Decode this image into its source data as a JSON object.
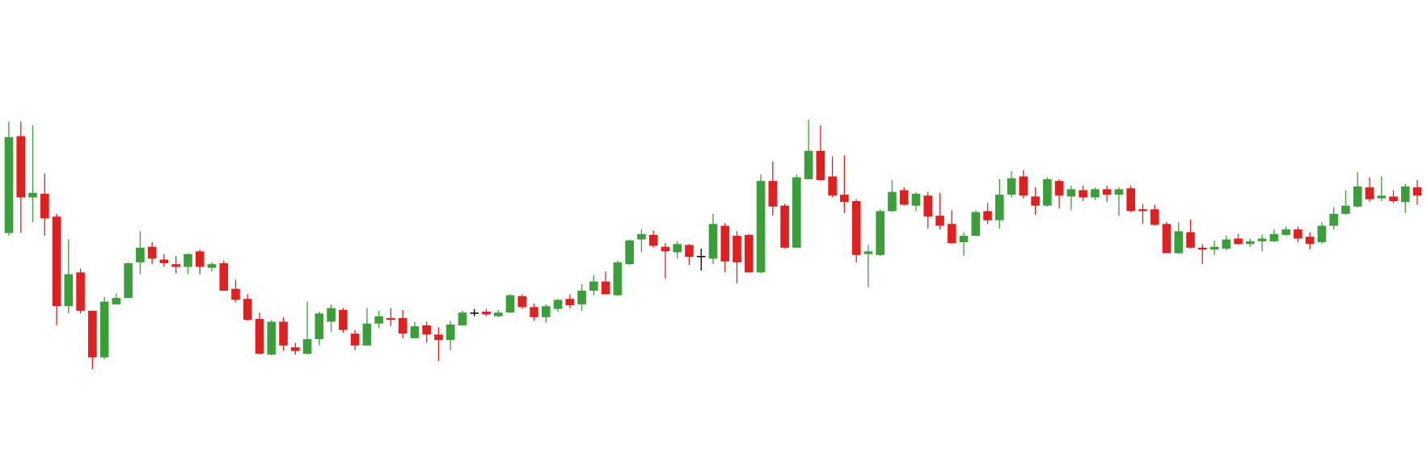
{
  "chart_data": {
    "type": "candlestick",
    "up_color": "#3a9e3a",
    "down_color": "#e02020",
    "flat_color": "#000000",
    "ylim": [
      0,
      500
    ],
    "open": [
      245,
      351,
      284,
      288,
      263,
      165,
      202,
      160,
      109,
      167,
      174,
      213,
      230,
      216,
      211,
      208,
      225,
      207,
      212,
      184,
      173,
      151,
      112,
      148,
      120,
      113,
      129,
      148,
      161,
      135,
      122,
      146,
      152,
      152,
      130,
      144,
      134,
      128,
      144,
      158,
      159,
      154,
      158,
      176,
      164,
      153,
      162,
      173,
      167,
      182,
      192,
      177,
      211,
      238,
      243,
      230,
      224,
      232,
      220,
      217,
      253,
      242,
      243,
      202,
      302,
      275,
      229,
      304,
      335,
      307,
      287,
      280,
      222,
      221,
      269,
      292,
      275,
      286,
      264,
      255,
      235,
      242,
      269,
      259,
      287,
      307,
      285,
      275,
      302,
      285,
      292,
      284,
      293,
      287,
      294,
      271,
      271,
      255,
      223,
      246,
      229,
      227,
      228,
      239,
      233,
      236,
      236,
      243,
      249,
      241,
      235,
      253,
      266,
      274,
      295,
      283,
      285,
      279,
      295
    ],
    "high": [
      367,
      367,
      363,
      310,
      266,
      238,
      206,
      160,
      175,
      179,
      213,
      247,
      235,
      222,
      220,
      223,
      227,
      213,
      215,
      194,
      178,
      158,
      150,
      153,
      125,
      170,
      159,
      167,
      163,
      139,
      163,
      160,
      163,
      161,
      148,
      148,
      142,
      149,
      160,
      162,
      162,
      161,
      178,
      178,
      168,
      167,
      173,
      178,
      189,
      199,
      203,
      215,
      238,
      249,
      248,
      234,
      236,
      233,
      228,
      266,
      256,
      247,
      244,
      309,
      323,
      277,
      309,
      369,
      363,
      329,
      330,
      282,
      232,
      271,
      303,
      295,
      290,
      290,
      289,
      270,
      246,
      270,
      278,
      304,
      313,
      314,
      295,
      306,
      304,
      297,
      297,
      295,
      297,
      295,
      297,
      277,
      276,
      257,
      257,
      260,
      233,
      237,
      242,
      244,
      239,
      243,
      249,
      252,
      252,
      246,
      257,
      273,
      292,
      312,
      306,
      307,
      292,
      299,
      303
    ],
    "low": [
      242,
      245,
      257,
      242,
      144,
      157,
      157,
      96,
      107,
      167,
      174,
      200,
      211,
      208,
      201,
      200,
      200,
      203,
      182,
      169,
      149,
      112,
      111,
      116,
      112,
      112,
      122,
      137,
      136,
      117,
      122,
      141,
      143,
      130,
      130,
      125,
      105,
      117,
      144,
      154,
      154,
      153,
      158,
      162,
      149,
      147,
      159,
      163,
      160,
      177,
      178,
      176,
      210,
      224,
      229,
      195,
      217,
      210,
      204,
      211,
      202,
      190,
      202,
      201,
      264,
      228,
      229,
      304,
      302,
      284,
      267,
      213,
      186,
      220,
      268,
      275,
      269,
      250,
      249,
      233,
      220,
      242,
      255,
      250,
      284,
      283,
      265,
      274,
      272,
      270,
      280,
      281,
      279,
      264,
      268,
      255,
      253,
      223,
      222,
      228,
      211,
      221,
      226,
      232,
      230,
      225,
      235,
      242,
      235,
      227,
      233,
      249,
      265,
      273,
      279,
      280,
      278,
      267,
      276
    ],
    "close": [
      350,
      284,
      289,
      261,
      165,
      200,
      160,
      109,
      170,
      174,
      212,
      229,
      217,
      212,
      208,
      222,
      208,
      211,
      182,
      172,
      150,
      113,
      148,
      122,
      116,
      129,
      157,
      163,
      139,
      122,
      146,
      154,
      150,
      135,
      143,
      134,
      128,
      145,
      158,
      158,
      156,
      158,
      177,
      164,
      153,
      165,
      172,
      166,
      182,
      192,
      178,
      213,
      237,
      244,
      231,
      225,
      233,
      219,
      220,
      255,
      214,
      213,
      202,
      302,
      274,
      229,
      306,
      335,
      303,
      286,
      279,
      221,
      225,
      269,
      290,
      276,
      288,
      263,
      253,
      234,
      242,
      268,
      259,
      287,
      305,
      286,
      275,
      304,
      286,
      293,
      284,
      293,
      287,
      293,
      269,
      269,
      254,
      223,
      247,
      229,
      227,
      230,
      238,
      233,
      236,
      239,
      244,
      249,
      239,
      233,
      253,
      266,
      275,
      296,
      282,
      286,
      280,
      296,
      286
    ]
  }
}
